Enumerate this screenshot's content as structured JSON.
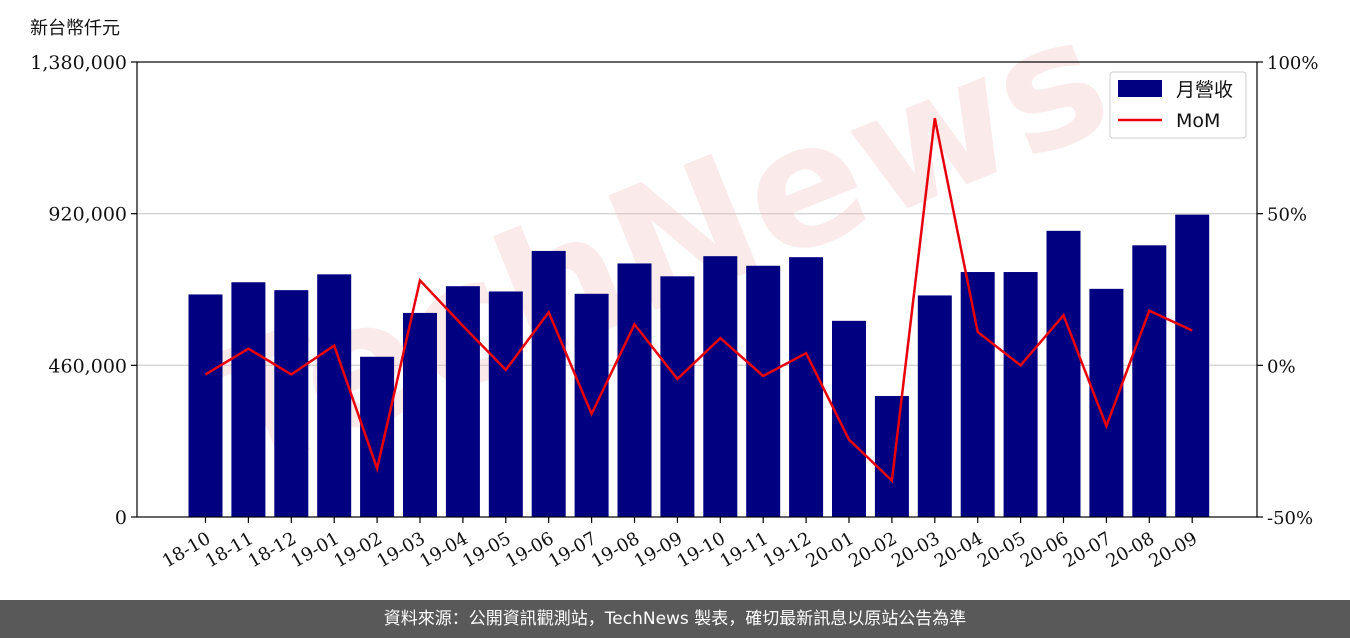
{
  "unit_label": "新台幣仟元",
  "footer": "資料來源：公開資訊觀測站，TechNews 製表，確切最新訊息以原站公告為準",
  "watermark": "TechNews",
  "colors": {
    "bar": "#000080",
    "line": "#e8000b",
    "footer_bg": "#595959"
  },
  "chart_data": {
    "type": "bar",
    "categories": [
      "18-10",
      "18-11",
      "18-12",
      "19-01",
      "19-02",
      "19-03",
      "19-04",
      "19-05",
      "19-06",
      "19-07",
      "19-08",
      "19-09",
      "19-10",
      "19-11",
      "19-12",
      "20-01",
      "20-02",
      "20-03",
      "20-04",
      "20-05",
      "20-06",
      "20-07",
      "20-08",
      "20-09"
    ],
    "series": [
      {
        "name": "月營收",
        "type": "bar",
        "axis": "left",
        "values": [
          675000,
          712000,
          688000,
          736000,
          486000,
          619000,
          700000,
          684000,
          807000,
          677000,
          769000,
          730000,
          791000,
          762000,
          788000,
          595000,
          367000,
          672000,
          743000,
          743000,
          868000,
          692000,
          824000,
          917000
        ]
      },
      {
        "name": "MoM",
        "type": "line",
        "axis": "right",
        "unit": "%",
        "values": [
          -3,
          5.5,
          -3,
          6.5,
          -34,
          28,
          13,
          -1.5,
          17.5,
          -16,
          13.5,
          -4.5,
          9,
          -3.5,
          4,
          -24.5,
          -38,
          81.5,
          11,
          0,
          16.5,
          -20,
          18,
          11.5
        ]
      }
    ],
    "y_left": {
      "min": 0,
      "max": 1380000,
      "ticks": [
        0,
        460000,
        920000,
        1380000
      ],
      "tick_labels": [
        "0",
        "460,000",
        "920,000",
        "1,380,000"
      ]
    },
    "y_right": {
      "min": -50,
      "max": 100,
      "ticks": [
        -50,
        0,
        50,
        100
      ],
      "tick_labels": [
        "-50%",
        "0%",
        "50%",
        "100%"
      ]
    },
    "grid": "horizontal",
    "legend": {
      "position": "top-right",
      "entries": [
        "月營收",
        "MoM"
      ]
    }
  }
}
